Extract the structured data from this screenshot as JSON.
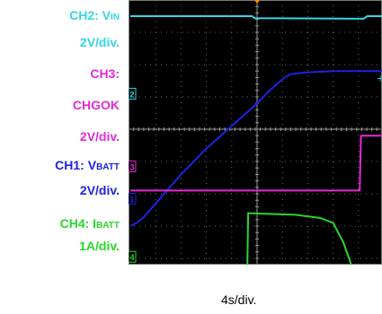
{
  "labels": {
    "ch2_prefix": "CH2: V",
    "ch2_sub": "IN",
    "ch2_scale": "2V/div.",
    "ch3_line1": "CH3:",
    "ch3_line2": "CHGOK",
    "ch3_scale": "2V/div.",
    "ch1_prefix": "CH1: V",
    "ch1_sub": "BATT",
    "ch1_scale": "2V/div.",
    "ch4_prefix": "CH4: I",
    "ch4_sub": "BATT",
    "ch4_scale": "1A/div."
  },
  "timebase": "4s/div.",
  "colors": {
    "ch1": "#1e22e0",
    "ch2": "#33d6e6",
    "ch3": "#e62ad6",
    "ch4": "#2ad62a",
    "trigger": "#ff8c00"
  },
  "chart_data": {
    "type": "line",
    "title": "",
    "xlabel": "4s/div.",
    "x_divisions": 10,
    "y_divisions": 8,
    "grid": true,
    "series": [
      {
        "name": "CH2: VIN",
        "channel": "2",
        "points": [
          [
            0,
            0.5
          ],
          [
            4.8,
            0.5
          ],
          [
            4.9,
            0.56
          ],
          [
            9.2,
            0.58
          ],
          [
            9.35,
            0.5
          ],
          [
            10,
            0.5
          ]
        ]
      },
      {
        "name": "CH1: VBATT",
        "channel": "1",
        "points": [
          [
            0,
            7.0
          ],
          [
            0.25,
            6.9
          ],
          [
            0.5,
            6.75
          ],
          [
            1.0,
            6.3
          ],
          [
            2.0,
            5.4
          ],
          [
            3.0,
            4.6
          ],
          [
            4.0,
            3.9
          ],
          [
            5.0,
            3.2
          ],
          [
            5.5,
            2.8
          ],
          [
            6.0,
            2.45
          ],
          [
            6.3,
            2.3
          ],
          [
            6.8,
            2.25
          ],
          [
            8.0,
            2.2
          ],
          [
            9.0,
            2.2
          ],
          [
            10,
            2.2
          ]
        ]
      },
      {
        "name": "CH3: CHGOK",
        "channel": "3",
        "points": [
          [
            0,
            5.9
          ],
          [
            9.05,
            5.9
          ],
          [
            9.1,
            4.2
          ],
          [
            10,
            4.2
          ]
        ]
      },
      {
        "name": "CH4: IBATT",
        "channel": "4",
        "points": [
          [
            0,
            9.25
          ],
          [
            2.5,
            9.22
          ],
          [
            4.2,
            9.18
          ],
          [
            4.3,
            9.05
          ],
          [
            4.6,
            9.12
          ],
          [
            4.65,
            6.6
          ],
          [
            6.5,
            6.65
          ],
          [
            7.5,
            6.75
          ],
          [
            8.0,
            6.9
          ],
          [
            8.4,
            7.5
          ],
          [
            8.9,
            8.6
          ],
          [
            9.1,
            9.45
          ],
          [
            10,
            9.5
          ]
        ]
      }
    ]
  }
}
